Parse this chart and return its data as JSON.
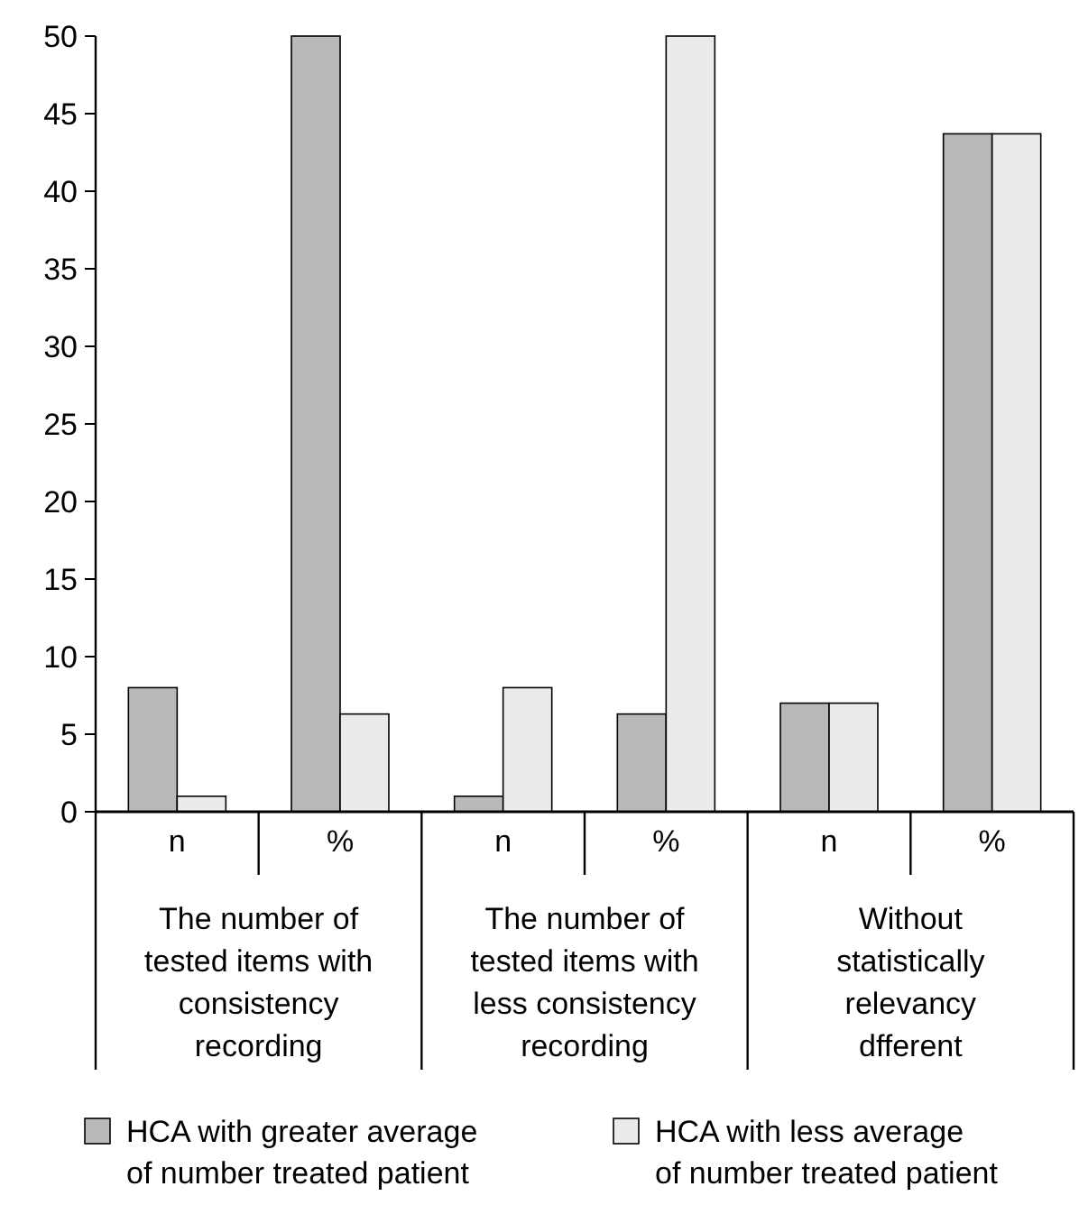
{
  "chart_data": {
    "type": "bar",
    "categories": [
      "n",
      "%",
      "n",
      "%",
      "n",
      "%"
    ],
    "series": [
      {
        "name": "HCA with greater average of number treated patient",
        "color": "#b9b9b9",
        "values": [
          8,
          50,
          1,
          6.3,
          7,
          43.7
        ]
      },
      {
        "name": "HCA with less average of number treated patient",
        "color": "#ebebeb",
        "values": [
          1,
          6.3,
          8,
          50,
          7,
          43.7
        ]
      }
    ],
    "annotations": [
      "The number of tested items with consistency recording",
      "The number of tested items with less consistency recording",
      "Without statistically relevancy dfferent"
    ],
    "ylim": [
      0,
      50
    ],
    "yticks": [
      0,
      5,
      10,
      15,
      20,
      25,
      30,
      35,
      40,
      45,
      50
    ],
    "legend": "bottom"
  }
}
